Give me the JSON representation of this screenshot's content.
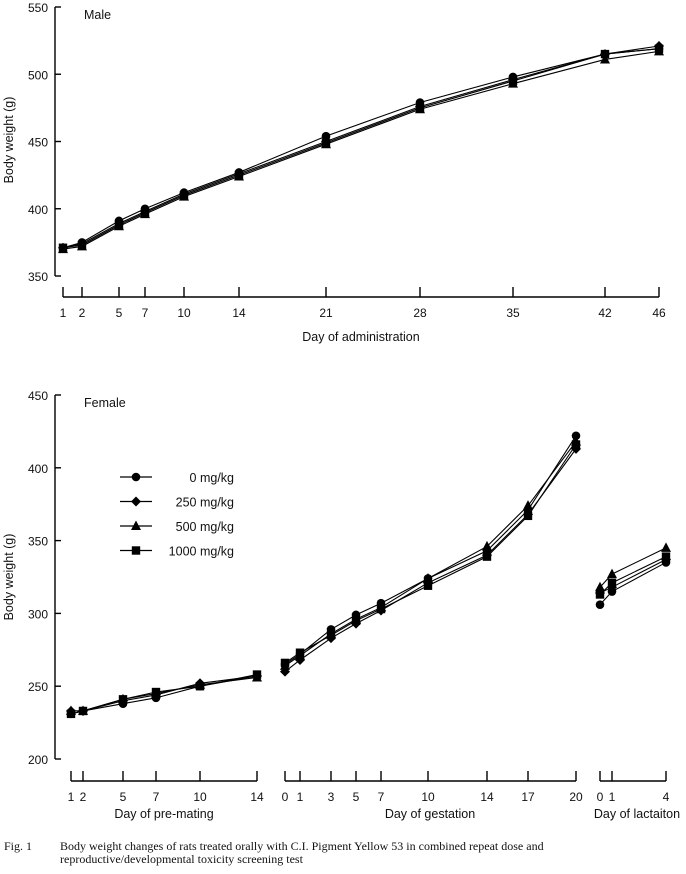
{
  "caption": {
    "label": "Fig. 1",
    "line1": "Body weight changes of rats treated orally with C.I. Pigment Yellow 53 in combined repeat dose and",
    "line2": "reproductive/developmental toxicity screening test"
  },
  "legend": [
    {
      "label": "0 mg/kg",
      "marker": "circle"
    },
    {
      "label": "250 mg/kg",
      "marker": "diamond"
    },
    {
      "label": "500 mg/kg",
      "marker": "triangle"
    },
    {
      "label": "1000 mg/kg",
      "marker": "square"
    }
  ],
  "chart_data": [
    {
      "type": "line",
      "panel_label": "Male",
      "ylabel": "Body weight (g)",
      "xlabel": "Day of administration",
      "ylim": [
        350,
        550
      ],
      "yticks": [
        350,
        400,
        450,
        500,
        550
      ],
      "x": [
        1,
        2,
        5,
        7,
        10,
        14,
        21,
        28,
        35,
        42,
        46
      ],
      "xtick_labels": [
        "1",
        "2",
        "5",
        "7",
        "10",
        "14",
        "21",
        "28",
        "35",
        "42",
        "46"
      ],
      "series": [
        {
          "name": "0 mg/kg",
          "marker": "circle",
          "values": [
            371,
            375,
            391,
            400,
            412,
            427,
            454,
            479,
            498,
            515,
            519
          ]
        },
        {
          "name": "250 mg/kg",
          "marker": "diamond",
          "values": [
            371,
            374,
            389,
            398,
            411,
            426,
            450,
            476,
            496,
            515,
            521
          ]
        },
        {
          "name": "500 mg/kg",
          "marker": "triangle",
          "values": [
            370,
            372,
            387,
            396,
            409,
            424,
            448,
            474,
            493,
            511,
            517
          ]
        },
        {
          "name": "1000 mg/kg",
          "marker": "square",
          "values": [
            371,
            373,
            388,
            397,
            410,
            425,
            449,
            475,
            495,
            515,
            519
          ]
        }
      ]
    },
    {
      "type": "line",
      "panel_label": "Female",
      "ylabel": "Body weight (g)",
      "ylim": [
        200,
        450
      ],
      "yticks": [
        200,
        250,
        300,
        350,
        400,
        450
      ],
      "segments": [
        {
          "xlabel": "Day of pre-mating",
          "x": [
            1,
            2,
            5,
            7,
            10,
            14
          ],
          "xtick_labels": [
            "1",
            "2",
            "5",
            "7",
            "10",
            "14"
          ],
          "series": [
            {
              "name": "0 mg/kg",
              "values": [
                231,
                233,
                238,
                242,
                250,
                257
              ]
            },
            {
              "name": "250 mg/kg",
              "values": [
                233,
                233,
                240,
                244,
                252,
                257
              ]
            },
            {
              "name": "500 mg/kg",
              "values": [
                233,
                233,
                241,
                245,
                251,
                256
              ]
            },
            {
              "name": "1000 mg/kg",
              "values": [
                231,
                233,
                241,
                246,
                250,
                258
              ]
            }
          ]
        },
        {
          "xlabel": "Day of gestation",
          "x": [
            0,
            1,
            3,
            5,
            7,
            10,
            14,
            17,
            20
          ],
          "xtick_labels": [
            "0",
            "1",
            "3",
            "5",
            "7",
            "10",
            "14",
            "17",
            "20"
          ],
          "series": [
            {
              "name": "0 mg/kg",
              "values": [
                265,
                272,
                289,
                299,
                307,
                324,
                343,
                371,
                422
              ]
            },
            {
              "name": "250 mg/kg",
              "values": [
                260,
                268,
                283,
                293,
                302,
                321,
                340,
                368,
                413
              ]
            },
            {
              "name": "500 mg/kg",
              "values": [
                264,
                271,
                286,
                296,
                304,
                324,
                346,
                374,
                418
              ]
            },
            {
              "name": "1000 mg/kg",
              "values": [
                266,
                273,
                285,
                295,
                303,
                319,
                339,
                367,
                416
              ]
            }
          ]
        },
        {
          "xlabel": "Day of lactaiton",
          "x": [
            0,
            1,
            4
          ],
          "xtick_labels": [
            "0",
            "1",
            "4"
          ],
          "series": [
            {
              "name": "0 mg/kg",
              "values": [
                306,
                315,
                335
              ]
            },
            {
              "name": "250 mg/kg",
              "values": [
                314,
                318,
                337
              ]
            },
            {
              "name": "500 mg/kg",
              "values": [
                318,
                327,
                345
              ]
            },
            {
              "name": "1000 mg/kg",
              "values": [
                313,
                321,
                339
              ]
            }
          ]
        }
      ]
    }
  ]
}
